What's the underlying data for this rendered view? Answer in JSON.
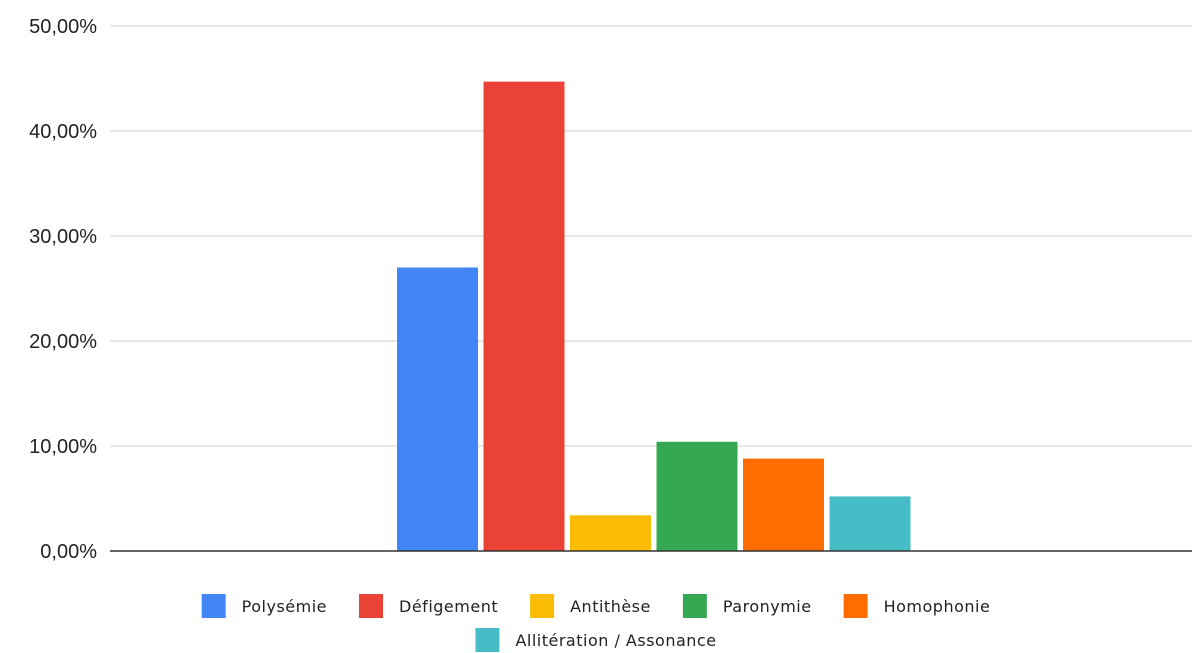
{
  "chart_data": {
    "type": "bar",
    "title": "",
    "xlabel": "",
    "ylabel": "",
    "ylim": [
      0,
      50
    ],
    "y_ticks": [
      {
        "value": 0,
        "label": "0,00%"
      },
      {
        "value": 10,
        "label": "10,00%"
      },
      {
        "value": 20,
        "label": "20,00%"
      },
      {
        "value": 30,
        "label": "30,00%"
      },
      {
        "value": 40,
        "label": "40,00%"
      },
      {
        "value": 50,
        "label": "50,00%"
      }
    ],
    "grid": true,
    "legend_position": "bottom",
    "series": [
      {
        "name": "Polysémie",
        "value": 27.0,
        "color": "#4285F4"
      },
      {
        "name": "Défigement",
        "value": 44.7,
        "color": "#EA4335"
      },
      {
        "name": "Antithèse",
        "value": 3.4,
        "color": "#FBBC04"
      },
      {
        "name": "Paronymie",
        "value": 10.4,
        "color": "#34A853"
      },
      {
        "name": "Homophonie",
        "value": 8.8,
        "color": "#FF6D01"
      },
      {
        "name": "Allitération / Assonance",
        "value": 5.2,
        "color": "#46BDC6"
      }
    ]
  }
}
